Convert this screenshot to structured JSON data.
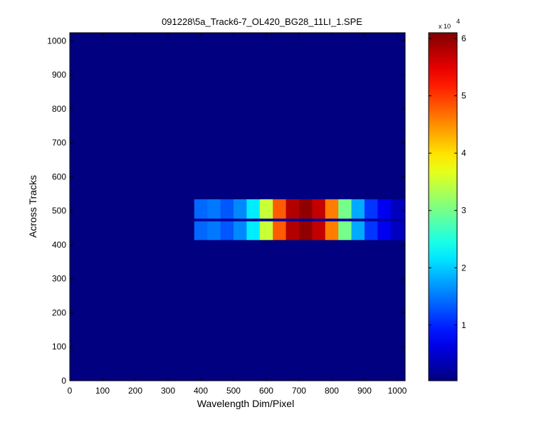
{
  "chart_data": {
    "type": "heatmap",
    "title": "091228\\5a_Track6-7_OL420_BG28_11LI_1.SPE",
    "x_label": "Wavelength Dim/Pixel",
    "y_label": "Across Tracks",
    "colormap": "jet",
    "x_edges": [
      0,
      380,
      420,
      460,
      500,
      540,
      580,
      620,
      660,
      700,
      740,
      780,
      820,
      860,
      900,
      940,
      980,
      1024
    ],
    "y_edges": [
      0,
      415,
      470,
      478,
      535,
      1024
    ],
    "values": [
      [
        300,
        300,
        300,
        300,
        300,
        300,
        300,
        300,
        300,
        300,
        300,
        300,
        300,
        300,
        300,
        300,
        300
      ],
      [
        300,
        14000,
        15000,
        13000,
        16000,
        22000,
        35000,
        48000,
        58000,
        60000,
        57000,
        46000,
        30000,
        18000,
        11000,
        7000,
        4000
      ],
      [
        300,
        2000,
        2000,
        2000,
        2000,
        2000,
        2000,
        2000,
        2000,
        2000,
        2000,
        2000,
        2000,
        2000,
        2000,
        2000,
        2000
      ],
      [
        300,
        14000,
        15000,
        13000,
        16000,
        22000,
        35000,
        48000,
        58000,
        60000,
        57000,
        46000,
        30000,
        18000,
        11000,
        7000,
        4000
      ],
      [
        300,
        300,
        300,
        300,
        300,
        300,
        300,
        300,
        300,
        300,
        300,
        300,
        300,
        300,
        300,
        300,
        300
      ]
    ],
    "xlim": [
      0,
      1024
    ],
    "ylim": [
      0,
      1024
    ],
    "xticks": [
      0,
      100,
      200,
      300,
      400,
      500,
      600,
      700,
      800,
      900,
      1000
    ],
    "yticks": [
      0,
      100,
      200,
      300,
      400,
      500,
      600,
      700,
      800,
      900,
      1000
    ],
    "colorbar": {
      "lim": [
        300,
        61000
      ],
      "ticks": [
        {
          "value": 10000,
          "label": "1"
        },
        {
          "value": 20000,
          "label": "2"
        },
        {
          "value": 30000,
          "label": "3"
        },
        {
          "value": 40000,
          "label": "4"
        },
        {
          "value": 50000,
          "label": "5"
        },
        {
          "value": 60000,
          "label": "6"
        }
      ],
      "multiplier": "x 10",
      "multiplier_exponent": "4"
    }
  }
}
